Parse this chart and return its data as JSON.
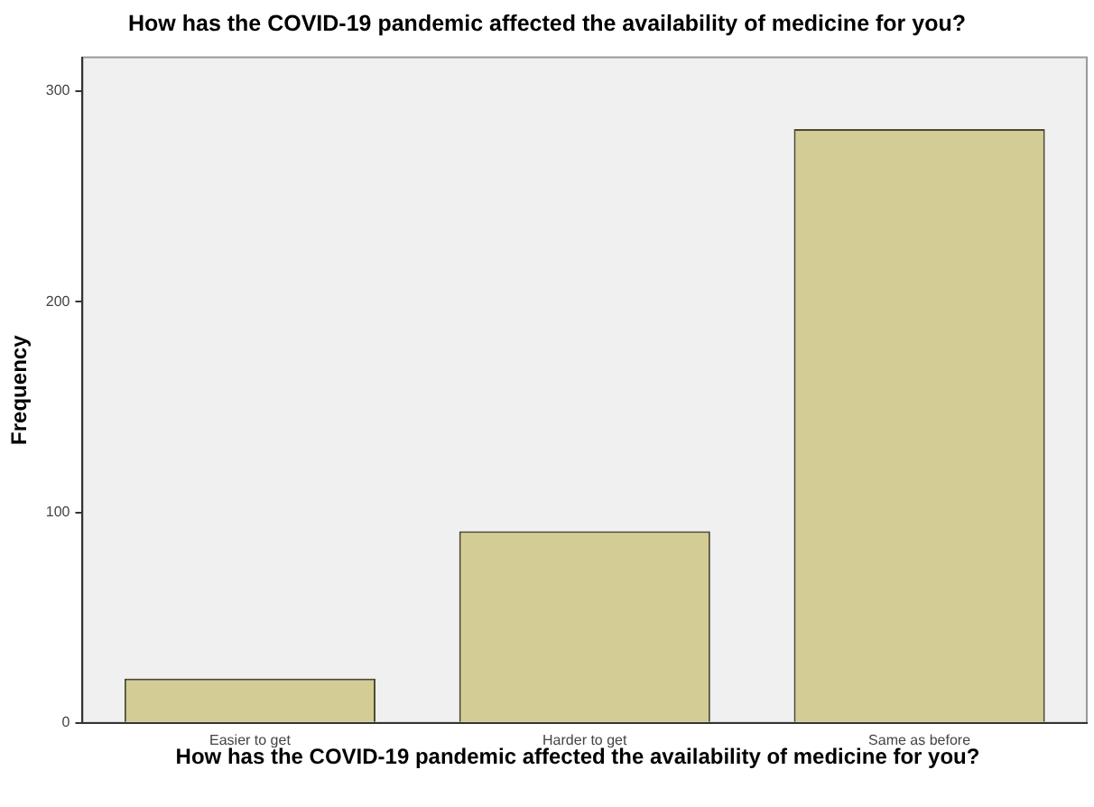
{
  "chart_data": {
    "type": "bar",
    "title": "How has the COVID-19 pandemic affected the availability of medicine for you?",
    "xlabel": "How has the COVID-19 pandemic affected the availability of medicine for you?",
    "ylabel": "Frequency",
    "categories": [
      "Easier to get",
      "Harder to get",
      "Same as before"
    ],
    "values": [
      21,
      91,
      282
    ],
    "color": "#d3cc94",
    "ylim": [
      0,
      316
    ],
    "yticks": [
      0,
      100,
      200,
      300
    ],
    "grid": false,
    "legend": false
  }
}
